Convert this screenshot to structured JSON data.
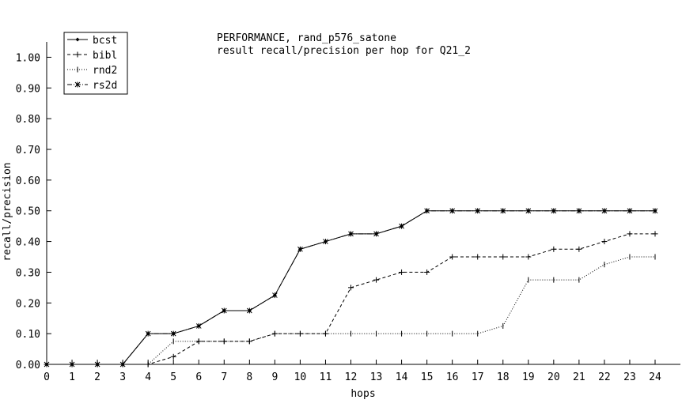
{
  "chart_data": {
    "type": "line",
    "title": "PERFORMANCE, rand_p576_satone",
    "subtitle": "result recall/precision per hop for Q21_2",
    "xlabel": "hops",
    "ylabel": "recall/precision",
    "xlim": [
      0,
      24
    ],
    "ylim": [
      0,
      1.05
    ],
    "x_ticks": [
      "0",
      "1",
      "2",
      "3",
      "4",
      "5",
      "6",
      "7",
      "8",
      "9",
      "10",
      "11",
      "12",
      "13",
      "14",
      "15",
      "16",
      "17",
      "18",
      "19",
      "20",
      "21",
      "22",
      "23",
      "24"
    ],
    "y_ticks": [
      "0.00",
      "0.10",
      "0.20",
      "0.30",
      "0.40",
      "0.50",
      "0.60",
      "0.70",
      "0.80",
      "0.90",
      "1.00"
    ],
    "grid": false,
    "legend_position": "top-left",
    "x": [
      0,
      1,
      2,
      3,
      4,
      5,
      6,
      7,
      8,
      9,
      10,
      11,
      12,
      13,
      14,
      15,
      16,
      17,
      18,
      19,
      20,
      21,
      22,
      23,
      24
    ],
    "series": [
      {
        "name": "bcst",
        "line_style": "solid",
        "marker": "diamond",
        "values": [
          0,
          0,
          0,
          0,
          0.1,
          0.1,
          0.125,
          0.175,
          0.175,
          0.225,
          0.375,
          0.4,
          0.425,
          0.425,
          0.45,
          0.5,
          0.5,
          0.5,
          0.5,
          0.5,
          0.5,
          0.5,
          0.5,
          0.5,
          0.5
        ]
      },
      {
        "name": "bibl",
        "line_style": "dashed",
        "marker": "plus",
        "values": [
          0,
          0,
          0,
          0,
          0,
          0.025,
          0.075,
          0.075,
          0.075,
          0.1,
          0.1,
          0.1,
          0.25,
          0.275,
          0.3,
          0.3,
          0.35,
          0.35,
          0.35,
          0.35,
          0.375,
          0.375,
          0.4,
          0.425,
          0.425
        ]
      },
      {
        "name": "rnd2",
        "line_style": "dotted",
        "marker": "tick",
        "values": [
          0,
          0,
          0,
          0,
          0,
          0.075,
          0.075,
          0.075,
          0.075,
          0.1,
          0.1,
          0.1,
          0.1,
          0.1,
          0.1,
          0.1,
          0.1,
          0.1,
          0.125,
          0.275,
          0.275,
          0.275,
          0.325,
          0.35,
          0.35
        ]
      },
      {
        "name": "rs2d",
        "line_style": "dashdot",
        "marker": "asterisk",
        "values": [
          0,
          0,
          0,
          0,
          0.1,
          0.1,
          0.125,
          0.175,
          0.175,
          0.225,
          0.375,
          0.4,
          0.425,
          0.425,
          0.45,
          0.5,
          0.5,
          0.5,
          0.5,
          0.5,
          0.5,
          0.5,
          0.5,
          0.5,
          0.5
        ]
      }
    ]
  }
}
